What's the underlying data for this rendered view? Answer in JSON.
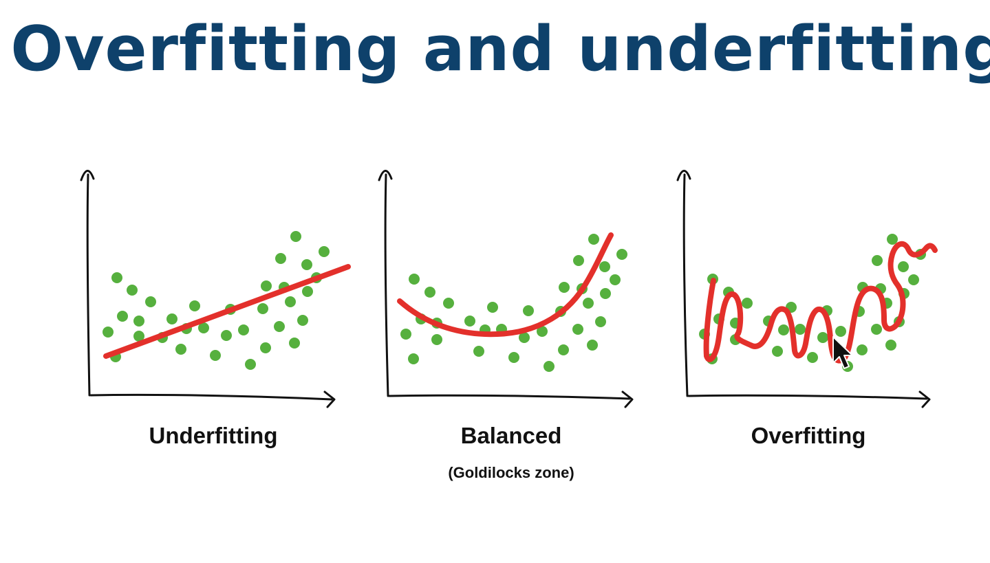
{
  "title": "Overfitting and underfitting",
  "colors": {
    "title": "#0e416b",
    "points": "#56b03e",
    "fit_line": "#e3302b",
    "axes": "#111111"
  },
  "panels": [
    {
      "label": "Underfitting",
      "sublabel": ""
    },
    {
      "label": "Balanced",
      "sublabel": "(Goldilocks zone)"
    },
    {
      "label": "Overfitting",
      "sublabel": ""
    }
  ],
  "icons": [
    "mouse-cursor-icon"
  ]
}
